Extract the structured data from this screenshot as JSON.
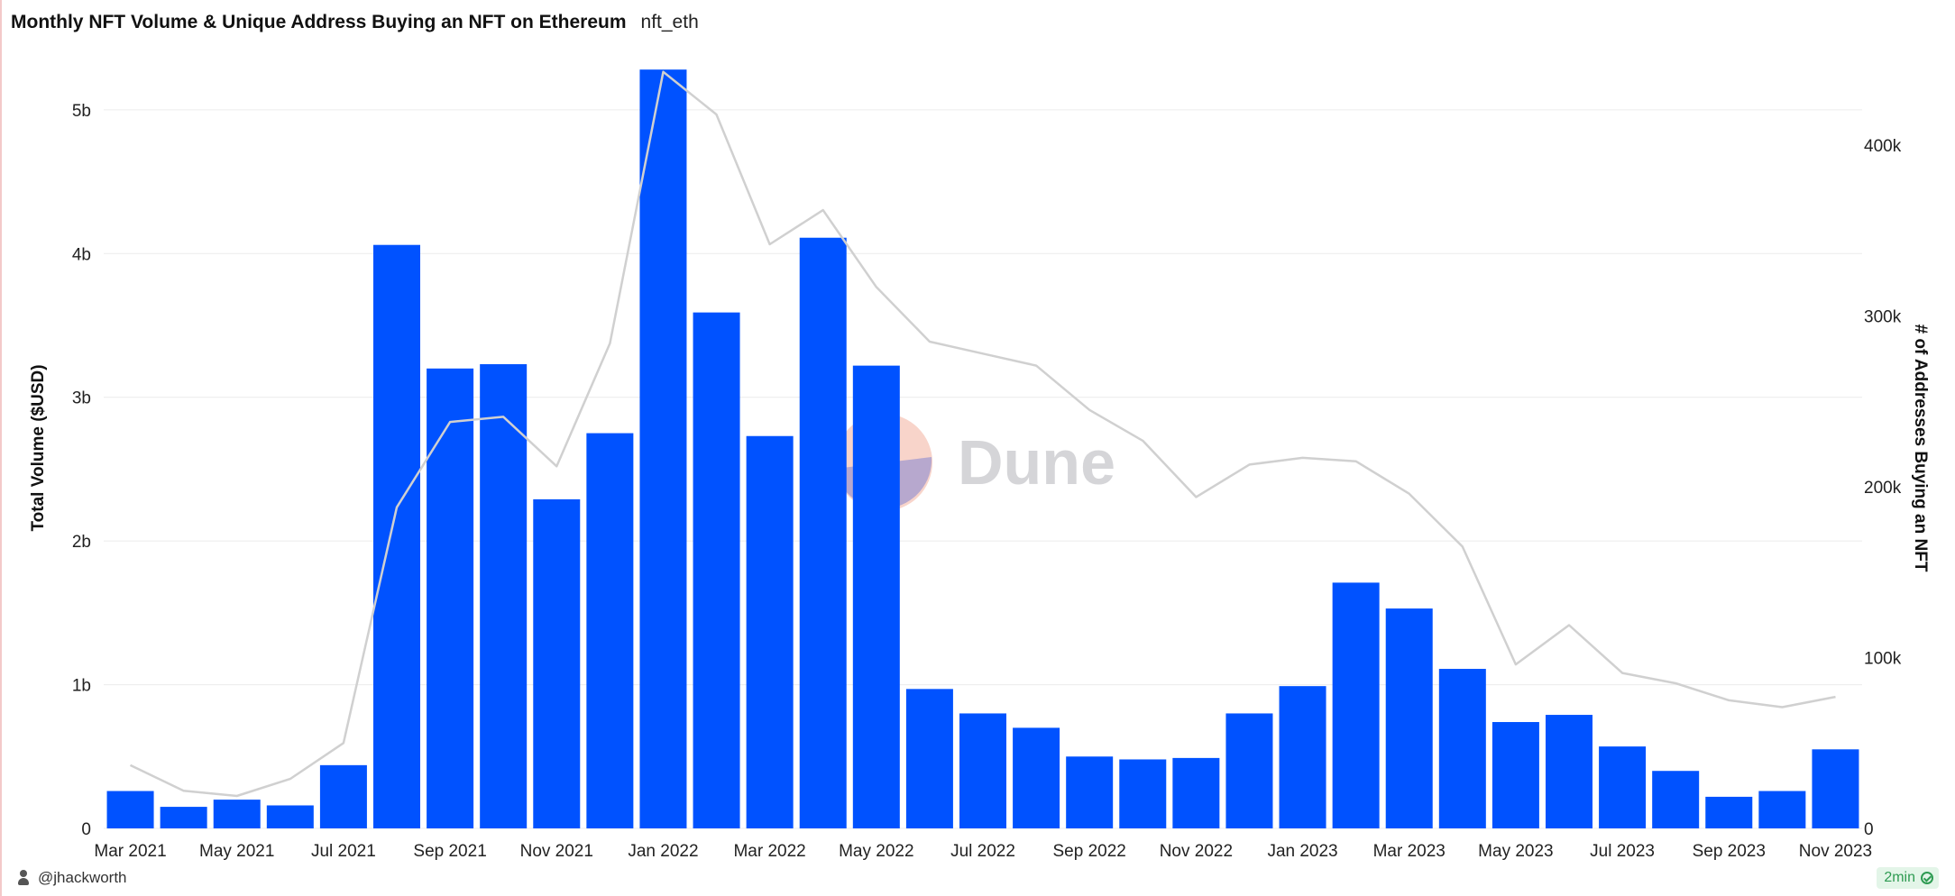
{
  "header": {
    "title": "Monthly NFT Volume & Unique Address Buying an NFT on Ethereum",
    "subtitle": "nft_eth"
  },
  "watermark": {
    "text": "Dune"
  },
  "footer": {
    "author": "@jhackworth",
    "refresh": "2min"
  },
  "colors": {
    "bar": "#0052ff",
    "line": "#d0d0d0",
    "grid": "#ececec",
    "refresh_badge": "#2e9b52"
  },
  "chart_data": {
    "type": "bar",
    "title": "Monthly NFT Volume & Unique Address Buying an NFT on Ethereum",
    "ylabel": "Total Volume ($USD)",
    "y2label": "# of Addresses Buying an NFT",
    "ylim": [
      0,
      5300000000
    ],
    "y2lim": [
      0,
      446000
    ],
    "yticks": [
      0,
      1000000000,
      2000000000,
      3000000000,
      4000000000,
      5000000000
    ],
    "ytick_labels": [
      "0",
      "1b",
      "2b",
      "3b",
      "4b",
      "5b"
    ],
    "y2ticks": [
      0,
      100000,
      200000,
      300000,
      400000
    ],
    "y2tick_labels": [
      "0",
      "100k",
      "200k",
      "300k",
      "400k"
    ],
    "grid": true,
    "categories": [
      "Mar 2021",
      "Apr 2021",
      "May 2021",
      "Jun 2021",
      "Jul 2021",
      "Aug 2021",
      "Sep 2021",
      "Oct 2021",
      "Nov 2021",
      "Dec 2021",
      "Jan 2022",
      "Feb 2022",
      "Mar 2022",
      "Apr 2022",
      "May 2022",
      "Jun 2022",
      "Jul 2022",
      "Aug 2022",
      "Sep 2022",
      "Oct 2022",
      "Nov 2022",
      "Dec 2022",
      "Jan 2023",
      "Feb 2023",
      "Mar 2023",
      "Apr 2023",
      "May 2023",
      "Jun 2023",
      "Jul 2023",
      "Aug 2023",
      "Sep 2023",
      "Oct 2023",
      "Nov 2023"
    ],
    "xtick_labels": [
      "Mar 2021",
      "May 2021",
      "Jul 2021",
      "Sep 2021",
      "Nov 2021",
      "Jan 2022",
      "Mar 2022",
      "May 2022",
      "Jul 2022",
      "Sep 2022",
      "Nov 2022",
      "Jan 2023",
      "Mar 2023",
      "May 2023",
      "Jul 2023",
      "Sep 2023",
      "Nov 2023"
    ],
    "series": [
      {
        "type": "bar",
        "axis": "left",
        "values": [
          260000000,
          150000000,
          200000000,
          160000000,
          440000000,
          4060000000,
          3200000000,
          3230000000,
          2290000000,
          2750000000,
          5280000000,
          3590000000,
          2730000000,
          4110000000,
          3220000000,
          970000000,
          800000000,
          700000000,
          500000000,
          480000000,
          490000000,
          800000000,
          990000000,
          1710000000,
          1530000000,
          1110000000,
          740000000,
          790000000,
          570000000,
          400000000,
          220000000,
          260000000,
          550000000
        ]
      },
      {
        "type": "line",
        "axis": "right",
        "values": [
          37000,
          22000,
          19000,
          29000,
          50000,
          188000,
          238000,
          241000,
          212000,
          284000,
          443000,
          418000,
          342000,
          362000,
          317000,
          285000,
          278000,
          271000,
          245000,
          227000,
          194000,
          213000,
          217000,
          215000,
          196000,
          165000,
          96000,
          119000,
          91000,
          85000,
          75000,
          71000,
          77000
        ]
      }
    ]
  }
}
